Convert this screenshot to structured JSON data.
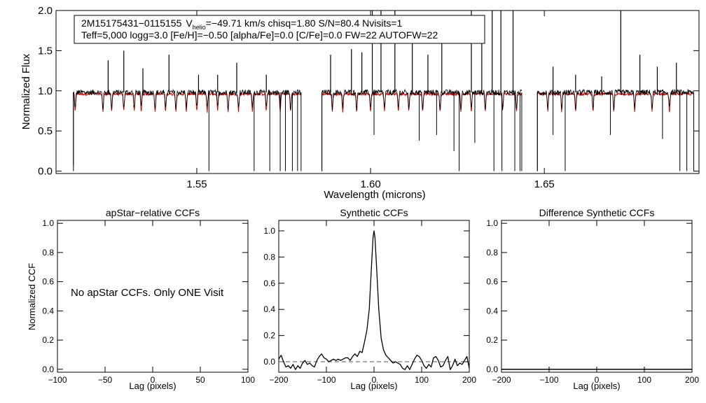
{
  "header": {
    "object_id": "2M15175431−0115155",
    "v_symbol": "V",
    "v_sub": "helio",
    "line1_rest": "=−49.71 km/s  chisq=1.80  S/N=80.4  Nvisits=1",
    "line2": "Teff=5,000 logg=3.0 [Fe/H]=−0.50 [alpha/Fe]=0.0 [C/Fe]=0.0 FW=22 AUTOFW=22"
  },
  "colors": {
    "observed": "#000000",
    "model": "#cc0000",
    "zero_line": "#555555"
  },
  "chart_data": [
    {
      "type": "line",
      "id": "spectrum",
      "title": "",
      "xlabel": "Wavelength (microns)",
      "ylabel": "Normalized Flux",
      "xlim": [
        1.5095,
        1.6945
      ],
      "ylim": [
        -0.03,
        2.0
      ],
      "xticks": [
        1.55,
        1.6,
        1.65
      ],
      "xtick_labels": [
        "1.55",
        "1.60",
        "1.65"
      ],
      "yticks": [
        0.0,
        0.5,
        1.0,
        1.5,
        2.0
      ],
      "ytick_labels": [
        "0.0",
        "0.5",
        "1.0",
        "1.5",
        "2.0"
      ],
      "segments": [
        {
          "start": 1.5145,
          "end": 1.58
        },
        {
          "start": 1.586,
          "end": 1.6435
        },
        {
          "start": 1.648,
          "end": 1.693
        }
      ],
      "series": [
        {
          "name": "observed",
          "continuum": 0.98
        },
        {
          "name": "model",
          "continuum": 0.96
        }
      ],
      "absorption_lines": [
        1.515,
        1.523,
        1.5255,
        1.529,
        1.532,
        1.534,
        1.538,
        1.541,
        1.544,
        1.547,
        1.55,
        1.553,
        1.556,
        1.559,
        1.562,
        1.566,
        1.57,
        1.574,
        1.577,
        1.589,
        1.592,
        1.596,
        1.6,
        1.604,
        1.608,
        1.611,
        1.615,
        1.62,
        1.626,
        1.629,
        1.633,
        1.638,
        1.642,
        1.651,
        1.655,
        1.659,
        1.664,
        1.67,
        1.676,
        1.681,
        1.686
      ],
      "emission_spikes": [
        {
          "x": 1.5245,
          "y": 1.38
        },
        {
          "x": 1.529,
          "y": 1.5
        },
        {
          "x": 1.5345,
          "y": 1.28
        },
        {
          "x": 1.542,
          "y": 1.45
        },
        {
          "x": 1.5505,
          "y": 1.2
        },
        {
          "x": 1.556,
          "y": 1.2
        },
        {
          "x": 1.5615,
          "y": 1.35
        },
        {
          "x": 1.57,
          "y": 1.2
        },
        {
          "x": 1.5885,
          "y": 1.45
        },
        {
          "x": 1.5945,
          "y": 1.52
        },
        {
          "x": 1.5975,
          "y": 1.48
        },
        {
          "x": 1.6005,
          "y": 2.0
        },
        {
          "x": 1.603,
          "y": 2.0
        },
        {
          "x": 1.607,
          "y": 2.0
        },
        {
          "x": 1.612,
          "y": 1.85
        },
        {
          "x": 1.6165,
          "y": 1.45
        },
        {
          "x": 1.6205,
          "y": 1.7
        },
        {
          "x": 1.629,
          "y": 2.0
        },
        {
          "x": 1.632,
          "y": 1.65
        },
        {
          "x": 1.635,
          "y": 2.0
        },
        {
          "x": 1.6375,
          "y": 2.0
        },
        {
          "x": 1.641,
          "y": 2.0
        },
        {
          "x": 1.6525,
          "y": 1.3
        },
        {
          "x": 1.659,
          "y": 1.2
        },
        {
          "x": 1.6665,
          "y": 1.18
        },
        {
          "x": 1.672,
          "y": 2.0
        },
        {
          "x": 1.6775,
          "y": 1.45
        },
        {
          "x": 1.6825,
          "y": 1.3
        },
        {
          "x": 1.688,
          "y": 1.35
        }
      ],
      "deep_dips": [
        {
          "x": 1.5145,
          "y": 0.07
        },
        {
          "x": 1.5535,
          "y": 0.0
        },
        {
          "x": 1.5665,
          "y": 0.0
        },
        {
          "x": 1.571,
          "y": 0.0
        },
        {
          "x": 1.574,
          "y": 0.0
        },
        {
          "x": 1.5755,
          "y": 0.0
        },
        {
          "x": 1.5775,
          "y": 0.0
        },
        {
          "x": 1.579,
          "y": 0.0
        },
        {
          "x": 1.586,
          "y": 0.0
        },
        {
          "x": 1.601,
          "y": 0.45
        },
        {
          "x": 1.614,
          "y": 0.38
        },
        {
          "x": 1.619,
          "y": 0.45
        },
        {
          "x": 1.624,
          "y": 0.25
        },
        {
          "x": 1.6255,
          "y": 0.0
        },
        {
          "x": 1.63,
          "y": 0.35
        },
        {
          "x": 1.6355,
          "y": 0.0
        },
        {
          "x": 1.6378,
          "y": 0.0
        },
        {
          "x": 1.6415,
          "y": 0.0
        },
        {
          "x": 1.643,
          "y": 0.0
        },
        {
          "x": 1.648,
          "y": 0.0
        },
        {
          "x": 1.6525,
          "y": 0.45
        },
        {
          "x": 1.656,
          "y": 0.0
        },
        {
          "x": 1.669,
          "y": 0.45
        },
        {
          "x": 1.684,
          "y": 0.4
        },
        {
          "x": 1.689,
          "y": 0.0
        },
        {
          "x": 1.691,
          "y": 0.0
        }
      ]
    },
    {
      "type": "line",
      "id": "apstar_ccf",
      "title": "apStar−relative CCFs",
      "xlabel": "Lag (pixels)",
      "ylabel": "Normalized CCF",
      "xlim": [
        -100,
        100
      ],
      "ylim": [
        -0.02,
        1.02
      ],
      "xticks": [
        -100,
        -50,
        0,
        50,
        100
      ],
      "xtick_labels": [
        "−100",
        "−50",
        "0",
        "50",
        "100"
      ],
      "yticks": [
        0.0,
        0.2,
        0.4,
        0.6,
        0.8,
        1.0
      ],
      "ytick_labels": [
        "0.0",
        "0.2",
        "0.4",
        "0.6",
        "0.8",
        "1.0"
      ],
      "annotation": "No apStar CCFs.  Only ONE Visit",
      "series": []
    },
    {
      "type": "line",
      "id": "synthetic_ccf",
      "title": "Synthetic CCFs",
      "xlabel": "Lag (pixels)",
      "ylabel": "",
      "xlim": [
        -200,
        200
      ],
      "ylim": [
        -0.08,
        1.08
      ],
      "xticks": [
        -200,
        -100,
        0,
        100,
        200
      ],
      "xtick_labels": [
        "−200",
        "−100",
        "0",
        "100",
        "200"
      ],
      "yticks": [
        0.0,
        0.2,
        0.4,
        0.6,
        0.8,
        1.0
      ],
      "ytick_labels": [
        "0.0",
        "0.2",
        "0.4",
        "0.6",
        "0.8",
        "1.0"
      ],
      "reference_line": 0.0,
      "series": [
        {
          "name": "synthetic",
          "x": [
            -200,
            -195,
            -190,
            -185,
            -180,
            -175,
            -170,
            -165,
            -160,
            -155,
            -150,
            -145,
            -140,
            -135,
            -130,
            -125,
            -120,
            -115,
            -110,
            -105,
            -100,
            -95,
            -90,
            -85,
            -80,
            -75,
            -70,
            -65,
            -60,
            -55,
            -50,
            -45,
            -40,
            -35,
            -30,
            -25,
            -20,
            -15,
            -10,
            -5,
            -2,
            0,
            2,
            5,
            10,
            15,
            20,
            25,
            30,
            35,
            40,
            45,
            50,
            55,
            60,
            65,
            70,
            75,
            80,
            85,
            90,
            95,
            100,
            105,
            110,
            115,
            120,
            125,
            130,
            135,
            140,
            145,
            150,
            155,
            160,
            165,
            170,
            175,
            180,
            185,
            190,
            195,
            200
          ],
          "y": [
            0.02,
            0.05,
            0.0,
            -0.04,
            -0.03,
            -0.05,
            -0.02,
            -0.06,
            -0.03,
            -0.05,
            -0.01,
            0.01,
            -0.02,
            -0.01,
            -0.03,
            -0.04,
            0.01,
            0.04,
            0.06,
            0.03,
            0.02,
            0.0,
            0.01,
            0.02,
            0.01,
            0.02,
            0.01,
            0.02,
            0.03,
            0.03,
            0.01,
            0.04,
            0.06,
            0.04,
            0.08,
            0.07,
            0.15,
            0.24,
            0.4,
            0.75,
            0.95,
            1.0,
            0.95,
            0.75,
            0.4,
            0.18,
            0.09,
            0.05,
            0.03,
            0.01,
            -0.01,
            0.0,
            -0.01,
            -0.02,
            -0.05,
            -0.06,
            -0.03,
            -0.06,
            -0.02,
            0.02,
            0.05,
            0.04,
            0.01,
            -0.03,
            -0.05,
            -0.02,
            -0.04,
            0.03,
            0.04,
            0.01,
            -0.04,
            -0.03,
            0.01,
            0.04,
            -0.06,
            -0.03,
            0.02,
            -0.03,
            -0.01,
            -0.02,
            0.01,
            0.04,
            -0.05
          ]
        }
      ]
    },
    {
      "type": "line",
      "id": "difference_ccf",
      "title": "Difference Synthetic CCFs",
      "xlabel": "Lag (pixels)",
      "ylabel": "",
      "xlim": [
        -200,
        200
      ],
      "ylim": [
        -0.02,
        1.02
      ],
      "xticks": [
        -200,
        -100,
        0,
        100,
        200
      ],
      "xtick_labels": [
        "−200",
        "−100",
        "0",
        "100",
        "200"
      ],
      "yticks": [
        0.0,
        0.2,
        0.4,
        0.6,
        0.8,
        1.0
      ],
      "ytick_labels": [
        "0.0",
        "0.2",
        "0.4",
        "0.6",
        "0.8",
        "1.0"
      ],
      "series": [
        {
          "name": "difference",
          "x": [
            -200,
            200
          ],
          "y": [
            0.0,
            0.0
          ]
        }
      ]
    }
  ]
}
